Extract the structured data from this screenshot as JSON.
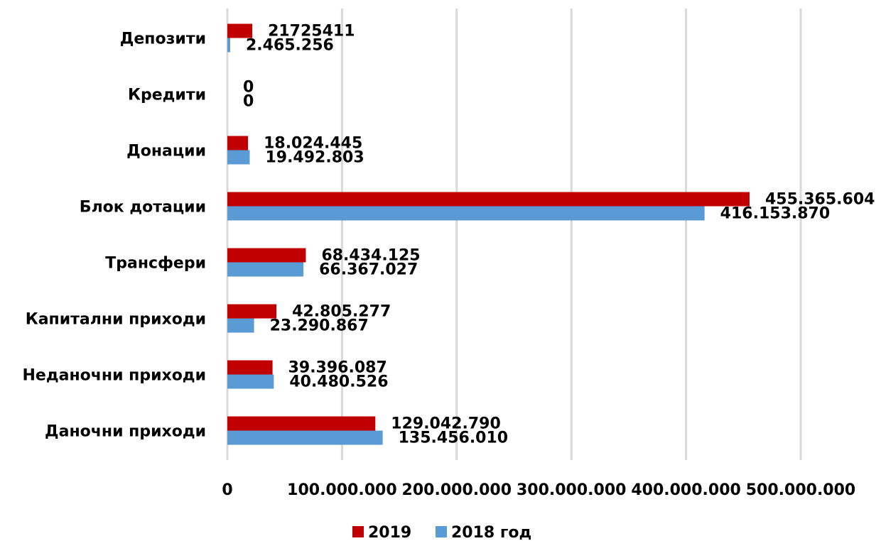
{
  "chart_data": {
    "type": "bar",
    "orientation": "horizontal",
    "categories": [
      "Даночни приходи",
      "Неданочни приходи",
      "Капитални приходи",
      "Трансфери",
      "Блок дотации",
      "Донации",
      "Кредити",
      "Депозити"
    ],
    "series": [
      {
        "name": "2019",
        "color": "#c00000",
        "values": [
          129042790,
          39396087,
          42805277,
          68434125,
          455365604,
          18024445,
          0,
          21725411
        ],
        "labels": [
          "129.042.790",
          "39.396.087",
          "42.805.277",
          "68.434.125",
          "455.365.604",
          "18.024.445",
          "0",
          "21725411"
        ]
      },
      {
        "name": "2018 год",
        "color": "#5b9bd5",
        "values": [
          135456010,
          40480526,
          23290867,
          66367027,
          416153870,
          19492803,
          0,
          2465256
        ],
        "labels": [
          "135.456.010",
          "40.480.526",
          "23.290.867",
          "66.367.027",
          "416.153.870",
          "19.492.803",
          "0",
          "2.465.256"
        ]
      }
    ],
    "x_ticks": [
      0,
      100000000,
      200000000,
      300000000,
      400000000,
      500000000
    ],
    "x_tick_labels": [
      "0",
      "100.000.000",
      "200.000.000",
      "300.000.000",
      "400.000.000",
      "500.000.000"
    ],
    "xlim": [
      0,
      500000000
    ],
    "grid": "vertical",
    "legend": "bottom-center"
  }
}
